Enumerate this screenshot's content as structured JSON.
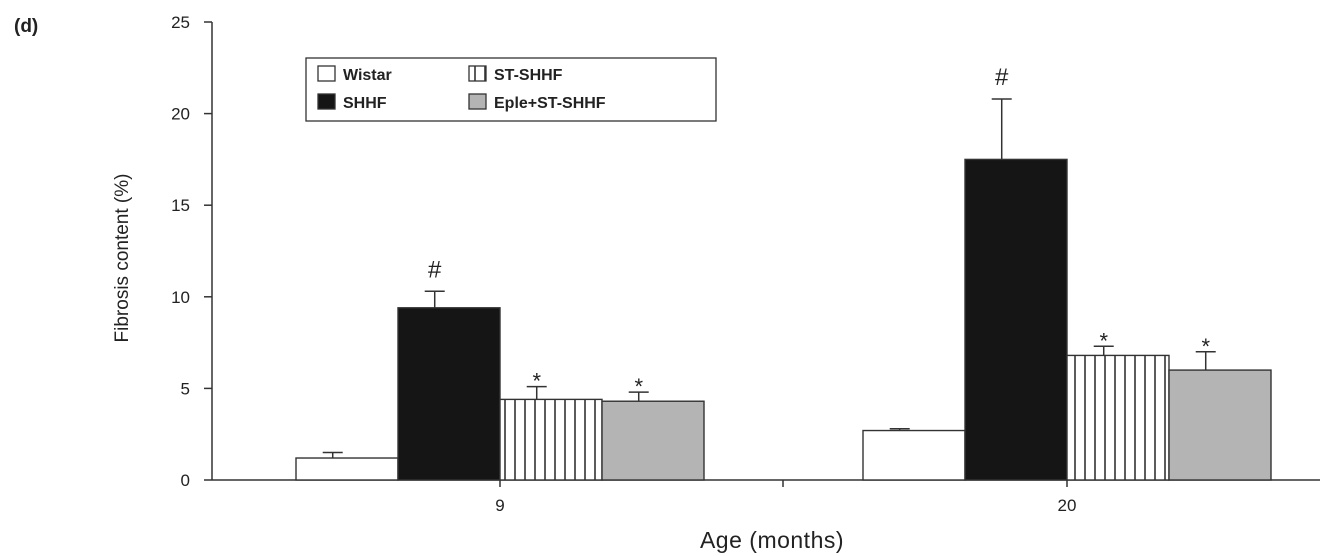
{
  "panel_label": "(d)",
  "chart_data": {
    "type": "bar",
    "title": "",
    "xlabel": "Age (months)",
    "ylabel": "Fibrosis content (%)",
    "ylim": [
      0,
      25
    ],
    "yticks": [
      0,
      5,
      10,
      15,
      20,
      25
    ],
    "categories": [
      "9",
      "20"
    ],
    "legend_position": "top-left",
    "series": [
      {
        "name": "Wistar",
        "pattern": "white",
        "values": [
          1.2,
          2.7
        ],
        "errors": [
          0.3,
          0.1
        ],
        "annotations": [
          "",
          ""
        ]
      },
      {
        "name": "SHHF",
        "pattern": "black",
        "values": [
          9.4,
          17.5
        ],
        "errors": [
          0.9,
          3.3
        ],
        "annotations": [
          "#",
          "#"
        ]
      },
      {
        "name": "ST-SHHF",
        "pattern": "stripes",
        "values": [
          4.4,
          6.8
        ],
        "errors": [
          0.7,
          0.5
        ],
        "annotations": [
          "*",
          "*"
        ]
      },
      {
        "name": "Eple+ST-SHHF",
        "pattern": "gray",
        "values": [
          4.3,
          6.0
        ],
        "errors": [
          0.5,
          1.0
        ],
        "annotations": [
          "*",
          "*"
        ]
      }
    ],
    "colors": {
      "white": "#ffffff",
      "black": "#151515",
      "gray": "#b4b4b4",
      "stroke": "#333333"
    }
  }
}
